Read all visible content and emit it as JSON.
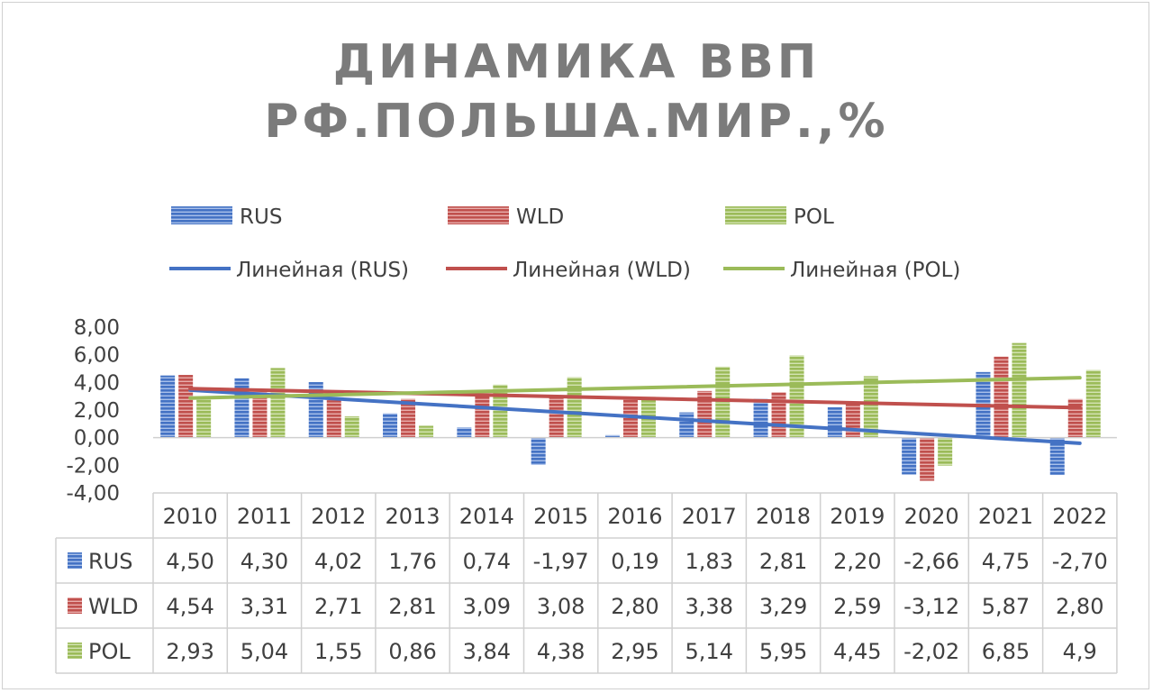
{
  "chart_data": {
    "type": "bar",
    "title": "ДИНАМИКА ВВП РФ.ПОЛЬША.МИР.,%",
    "title_lines": [
      "ДИНАМИКА ВВП",
      "РФ.ПОЛЬША.МИР.,%"
    ],
    "categories": [
      "2010",
      "2011",
      "2012",
      "2013",
      "2014",
      "2015",
      "2016",
      "2017",
      "2018",
      "2019",
      "2020",
      "2021",
      "2022"
    ],
    "series": [
      {
        "name": "RUS",
        "color": "#4472c4",
        "values": [
          4.5,
          4.3,
          4.02,
          1.76,
          0.74,
          -1.97,
          0.19,
          1.83,
          2.81,
          2.2,
          -2.66,
          4.75,
          -2.7
        ],
        "labels": [
          "4,50",
          "4,30",
          "4,02",
          "1,76",
          "0,74",
          "-1,97",
          "0,19",
          "1,83",
          "2,81",
          "2,20",
          "-2,66",
          "4,75",
          "-2,70"
        ]
      },
      {
        "name": "WLD",
        "color": "#c0504d",
        "values": [
          4.54,
          3.31,
          2.71,
          2.81,
          3.09,
          3.08,
          2.8,
          3.38,
          3.29,
          2.59,
          -3.12,
          5.87,
          2.8
        ],
        "labels": [
          "4,54",
          "3,31",
          "2,71",
          "2,81",
          "3,09",
          "3,08",
          "2,80",
          "3,38",
          "3,29",
          "2,59",
          "-3,12",
          "5,87",
          "2,80"
        ]
      },
      {
        "name": "POL",
        "color": "#9bbb59",
        "values": [
          2.93,
          5.04,
          1.55,
          0.86,
          3.84,
          4.38,
          2.95,
          5.14,
          5.95,
          4.45,
          -2.02,
          6.85,
          4.9
        ],
        "labels": [
          "2,93",
          "5,04",
          "1,55",
          "0,86",
          "3,84",
          "4,38",
          "2,95",
          "5,14",
          "5,95",
          "4,45",
          "-2,02",
          "6,85",
          "4,9"
        ]
      }
    ],
    "trendlines": [
      {
        "name": "Линейная (RUS)",
        "series": "RUS",
        "type": "linear",
        "color": "#4472c4"
      },
      {
        "name": "Линейная (WLD)",
        "series": "WLD",
        "type": "linear",
        "color": "#c0504d"
      },
      {
        "name": "Линейная (POL)",
        "series": "POL",
        "type": "linear",
        "color": "#9bbb59"
      }
    ],
    "ylim": [
      -4,
      8
    ],
    "yticks": [
      "8,00",
      "6,00",
      "4,00",
      "2,00",
      "0,00",
      "-2,00",
      "-4,00"
    ],
    "ytick_values": [
      8,
      6,
      4,
      2,
      0,
      -2,
      -4
    ],
    "grid": false,
    "legend_position": "top",
    "data_table": true
  }
}
